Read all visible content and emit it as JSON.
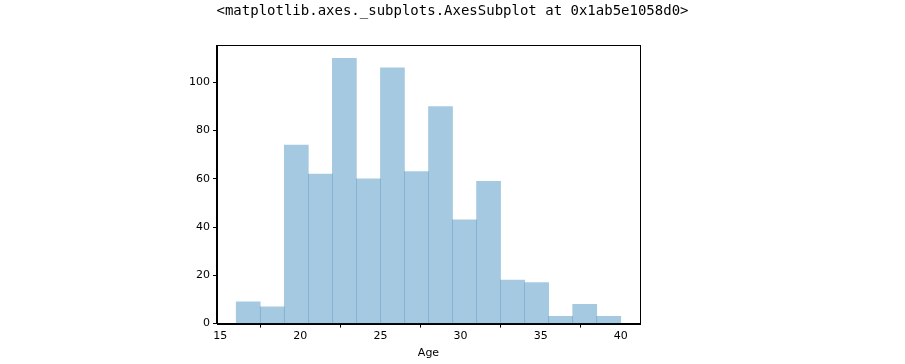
{
  "chart_data": {
    "type": "histogram",
    "title": "<matplotlib.axes._subplots.AxesSubplot at 0x1ab5e1058d0>",
    "x_label": "Age",
    "bins": [
      16,
      17.5,
      19,
      20.5,
      22,
      23.5,
      25,
      26.5,
      28,
      29.5,
      31,
      32.5,
      34,
      35.5,
      37,
      38.5,
      40
    ],
    "values": [
      9,
      7,
      74,
      62,
      110,
      60,
      106,
      63,
      90,
      43,
      59,
      18,
      17,
      3,
      8,
      3
    ],
    "color": "#1f77b4",
    "xlim": [
      14.8,
      41.2
    ],
    "xticks": [
      15,
      20,
      25,
      30,
      35,
      40
    ],
    "ylim": [
      0,
      115.5
    ],
    "yticks": [
      0,
      20,
      40,
      60,
      80,
      100
    ],
    "grid": false
  }
}
